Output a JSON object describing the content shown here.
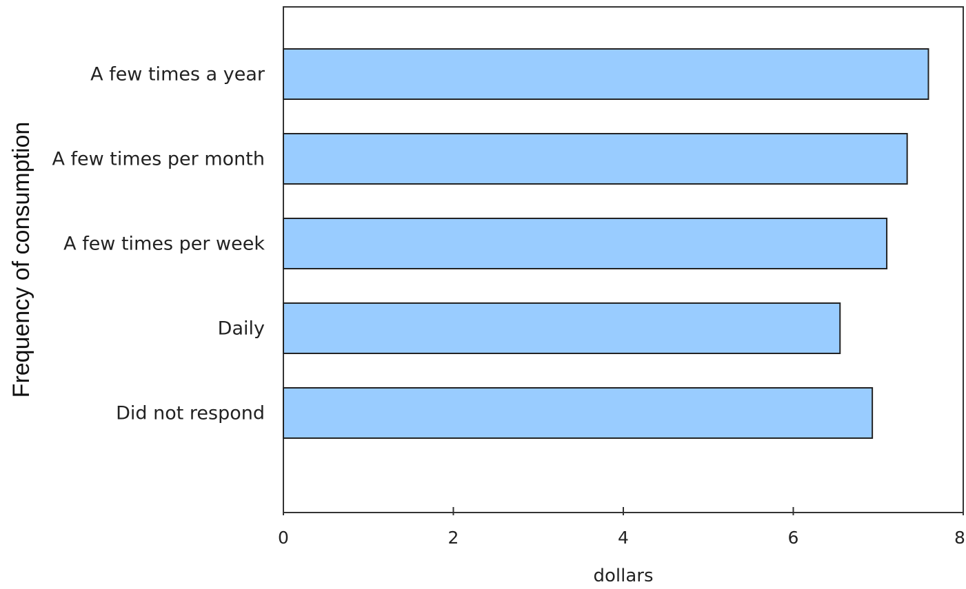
{
  "chart_data": {
    "type": "bar",
    "orientation": "horizontal",
    "categories": [
      "A few times a year",
      "A few times per month",
      "A few times per week",
      "Daily",
      "Did not respond"
    ],
    "values": [
      7.59,
      7.34,
      7.1,
      6.55,
      6.93
    ],
    "title": "",
    "xlabel": "dollars",
    "ylabel": "Frequency of consumption",
    "xlim": [
      0,
      8
    ],
    "xticks": [
      "0",
      "2",
      "4",
      "6",
      "8"
    ],
    "grid": false,
    "legend": "none",
    "bar_color": "#99ccff",
    "bar_edge_color": "#222222"
  }
}
